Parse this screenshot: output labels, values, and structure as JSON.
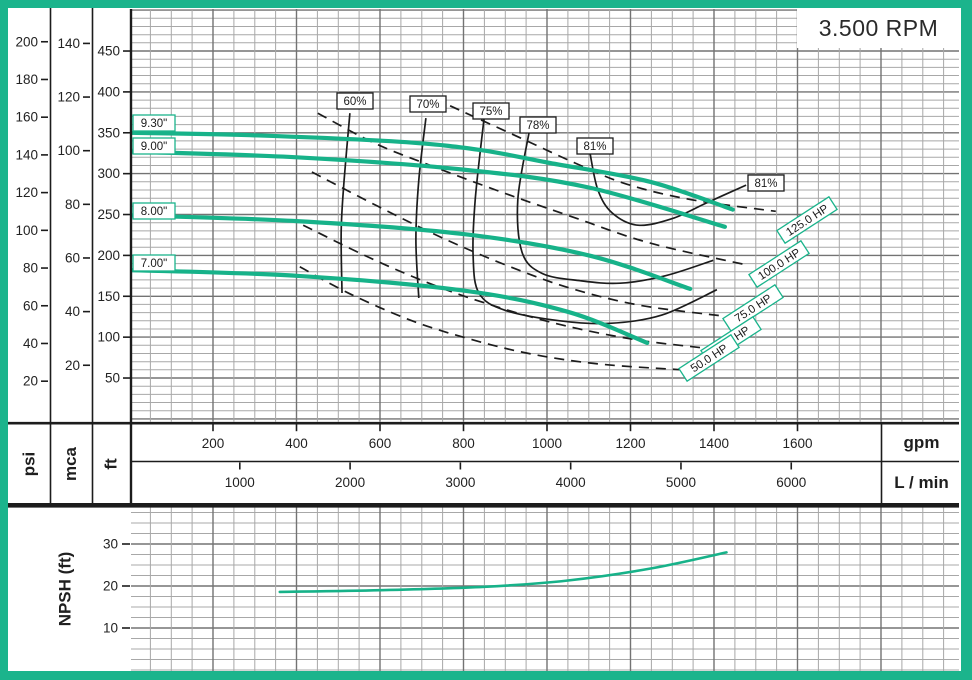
{
  "title": "3.500 RPM",
  "units": {
    "psi": "psi",
    "mca": "mca",
    "ft": "ft",
    "gpm": "gpm",
    "lmin": "L / min",
    "npsh": "NPSH (ft)"
  },
  "colors": {
    "accent": "#1bb48c",
    "curve_green": "#17b289",
    "grid_minor": "#a8a8a8",
    "grid_major": "#737373",
    "line_black": "#1c1c1c",
    "text": "#222222",
    "label_box_bg": "#ffffff"
  },
  "chart_data": [
    {
      "type": "line",
      "id": "pump-performance",
      "title": "3.500 RPM",
      "x_unit": "gpm",
      "x2_unit": "L / min",
      "y_units": [
        "psi",
        "mca",
        "ft"
      ],
      "xlim_gpm": [
        0,
        1985
      ],
      "ylim_ft": [
        0,
        500
      ],
      "x_ticks_gpm": [
        200,
        400,
        600,
        800,
        1000,
        1200,
        1400,
        1600
      ],
      "x_ticks_lmin": [
        1000,
        2000,
        3000,
        4000,
        5000,
        6000
      ],
      "y_ticks_ft": [
        50,
        100,
        150,
        200,
        250,
        300,
        350,
        400,
        450
      ],
      "y_ticks_psi": [
        20,
        40,
        60,
        80,
        100,
        120,
        140,
        160,
        180,
        200
      ],
      "y_ticks_mca": [
        20,
        40,
        60,
        80,
        100,
        120,
        140
      ],
      "grid": "on",
      "head_curves": [
        {
          "label": "9.30\"",
          "points": [
            [
              0,
              350
            ],
            [
              289,
              347
            ],
            [
              648,
              339
            ],
            [
              839,
              329
            ],
            [
              1007,
              313
            ],
            [
              1247,
              290
            ],
            [
              1445,
              256
            ]
          ]
        },
        {
          "label": "9.00\"",
          "points": [
            [
              0,
              327
            ],
            [
              400,
              320
            ],
            [
              800,
              305
            ],
            [
              1100,
              283
            ],
            [
              1426,
              235
            ]
          ]
        },
        {
          "label": "8.00\"",
          "points": [
            [
              0,
              249
            ],
            [
              400,
              242
            ],
            [
              800,
              226
            ],
            [
              1100,
              200
            ],
            [
              1343,
              159
            ]
          ]
        },
        {
          "label": "7.00\"",
          "points": [
            [
              0,
              182
            ],
            [
              400,
              175
            ],
            [
              800,
              157
            ],
            [
              1050,
              131
            ],
            [
              1240,
              93
            ]
          ]
        }
      ],
      "efficiency_curves": [
        {
          "label": "60%",
          "points": [
            [
              528,
              374
            ],
            [
              514,
              292
            ],
            [
              507,
              231
            ],
            [
              509,
              154
            ]
          ]
        },
        {
          "label": "70%",
          "points": [
            [
              710,
              368
            ],
            [
              693,
              292
            ],
            [
              686,
              219
            ],
            [
              693,
              148
            ]
          ]
        },
        {
          "label": "75%",
          "points": [
            [
              849,
              367
            ],
            [
              828,
              268
            ],
            [
              823,
              200
            ],
            [
              837,
              154
            ],
            [
              899,
              133
            ],
            [
              1031,
              120
            ],
            [
              1151,
              117
            ],
            [
              1275,
              127
            ],
            [
              1407,
              158
            ]
          ]
        },
        {
          "label": "78%",
          "points": [
            [
              957,
              350
            ],
            [
              930,
              268
            ],
            [
              940,
              204
            ],
            [
              988,
              178
            ],
            [
              1079,
              169
            ],
            [
              1175,
              166
            ],
            [
              1283,
              175
            ],
            [
              1398,
              194
            ]
          ]
        },
        {
          "label": "81%",
          "points": [
            [
              1103,
              325
            ],
            [
              1122,
              280
            ],
            [
              1156,
              252
            ],
            [
              1218,
              237
            ],
            [
              1300,
              245
            ],
            [
              1381,
              264
            ],
            [
              1477,
              286
            ]
          ]
        }
      ],
      "power_curves": [
        {
          "label": "125.0 HP",
          "points": [
            [
              768,
              383
            ],
            [
              935,
              344
            ],
            [
              1067,
              313
            ],
            [
              1192,
              287
            ],
            [
              1347,
              268
            ],
            [
              1548,
              254
            ]
          ]
        },
        {
          "label": "100.0 HP",
          "points": [
            [
              451,
              374
            ],
            [
              588,
              337
            ],
            [
              736,
              307
            ],
            [
              899,
              276
            ],
            [
              1067,
              246
            ],
            [
              1247,
              215
            ],
            [
              1481,
              188
            ]
          ]
        },
        {
          "label": "75.0 HP",
          "points": [
            [
              437,
              302
            ],
            [
              595,
              260
            ],
            [
              751,
              221
            ],
            [
              907,
              187
            ],
            [
              1055,
              160
            ],
            [
              1223,
              139
            ],
            [
              1419,
              126
            ]
          ]
        },
        {
          "label": "60.0 HP",
          "points": [
            [
              416,
              237
            ],
            [
              576,
              197
            ],
            [
              732,
              163
            ],
            [
              887,
              136
            ],
            [
              1043,
              114
            ],
            [
              1211,
              97
            ],
            [
              1371,
              87
            ]
          ]
        },
        {
          "label": "50.0 HP",
          "points": [
            [
              408,
              186
            ],
            [
              528,
              153
            ],
            [
              677,
              120
            ],
            [
              820,
              97
            ],
            [
              966,
              79
            ],
            [
              1127,
              67
            ],
            [
              1323,
              60
            ]
          ]
        }
      ]
    },
    {
      "type": "line",
      "id": "npsh",
      "ylabel": "NPSH (ft)",
      "ylim_ft": [
        0,
        40
      ],
      "y_ticks": [
        10,
        20,
        30
      ],
      "series": [
        {
          "name": "NPSH",
          "points": [
            [
              360,
              18.6
            ],
            [
              600,
              19.0
            ],
            [
              850,
              19.8
            ],
            [
              1050,
              21.3
            ],
            [
              1250,
              24.2
            ],
            [
              1430,
              28.0
            ]
          ]
        }
      ]
    }
  ]
}
